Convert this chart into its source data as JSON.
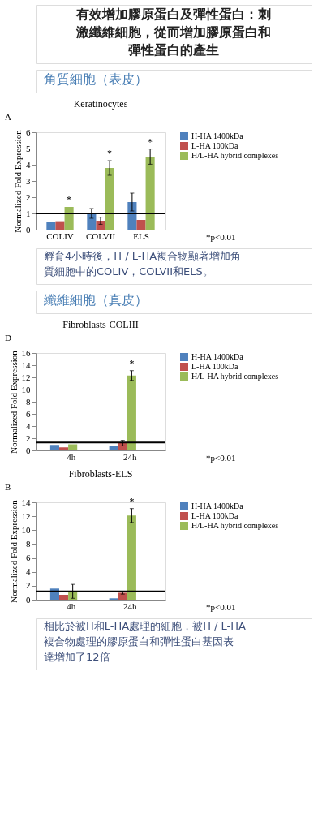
{
  "chart_data": [
    {
      "type": "bar",
      "title": "Keratinocytes",
      "ylabel": "Normalized Fold Expression",
      "categories": [
        "COLIV",
        "COLVII",
        "ELS"
      ],
      "series": [
        {
          "name": "H-HA 1400kDa",
          "color": "#4f81bd",
          "values": [
            0.45,
            1.0,
            1.7
          ],
          "errors": [
            null,
            0.3,
            0.55
          ]
        },
        {
          "name": "L-HA 100kDa",
          "color": "#c0504d",
          "values": [
            0.52,
            0.55,
            0.6
          ],
          "errors": [
            null,
            0.22,
            null
          ]
        },
        {
          "name": "H/L-HA hybrid complexes",
          "color": "#9bbb59",
          "values": [
            1.4,
            3.8,
            4.5
          ],
          "errors": [
            null,
            0.45,
            0.47
          ]
        }
      ],
      "ylim": [
        0,
        6
      ],
      "yticks": [
        0,
        1,
        2,
        3,
        4,
        5,
        6
      ],
      "grid": false,
      "legend": "right",
      "ref_lines": [
        {
          "axis": "y",
          "value": 1,
          "color": "#000000"
        }
      ],
      "annotations": [
        "有效增加膠原蛋白及彈性蛋白：刺激纖維細胞，從而增加膠原蛋白和彈性蛋白的產生",
        "角質細胞（表皮）",
        "A",
        "*p<0.01",
        "孵育4小時後，H / L-HA複合物顯著增加角質細胞中的COLIV，COLVII和ELS。",
        "*",
        "*",
        "*"
      ]
    },
    {
      "type": "bar",
      "title": "Fibroblasts-COLIII",
      "ylabel": "Normalized Fold Expression",
      "categories": [
        "4h",
        "24h"
      ],
      "series": [
        {
          "name": "H-HA 1400kDa",
          "color": "#4f81bd",
          "values": [
            0.9,
            0.7
          ],
          "errors": [
            null,
            null
          ]
        },
        {
          "name": "L-HA 100kDa",
          "color": "#c0504d",
          "values": [
            0.5,
            1.2
          ],
          "errors": [
            null,
            0.45
          ]
        },
        {
          "name": "H/L-HA hybrid complexes",
          "color": "#9bbb59",
          "values": [
            1.0,
            12.3
          ],
          "errors": [
            null,
            0.8
          ]
        }
      ],
      "ylim": [
        0,
        16
      ],
      "yticks": [
        0,
        2,
        4,
        6,
        8,
        10,
        12,
        14,
        16
      ],
      "grid": false,
      "legend": "right",
      "ref_lines": [
        {
          "axis": "y",
          "value": 1.3,
          "color": "#000000"
        }
      ],
      "annotations": [
        "纖維細胞（真皮）",
        "D",
        "*p<0.01",
        "*"
      ]
    },
    {
      "type": "bar",
      "title": "Fibroblasts-ELS",
      "ylabel": "Normalized Fold Expression",
      "categories": [
        "4h",
        "24h"
      ],
      "series": [
        {
          "name": "H-HA 1400kDa",
          "color": "#4f81bd",
          "values": [
            1.6,
            0.2
          ],
          "errors": [
            null,
            null
          ]
        },
        {
          "name": "L-HA 100kDa",
          "color": "#c0504d",
          "values": [
            0.7,
            1.0
          ],
          "errors": [
            null,
            0.2
          ]
        },
        {
          "name": "H/L-HA hybrid complexes",
          "color": "#9bbb59",
          "values": [
            1.2,
            12.1
          ],
          "errors": [
            1.0,
            1.0
          ]
        }
      ],
      "ylim": [
        0,
        14
      ],
      "yticks": [
        0,
        2,
        4,
        6,
        8,
        10,
        12,
        14
      ],
      "grid": false,
      "legend": "right",
      "ref_lines": [
        {
          "axis": "y",
          "value": 1.2,
          "color": "#000000"
        }
      ],
      "annotations": [
        "B",
        "*p<0.01",
        "相比於被H和L-HA處理的細胞，被H / L-HA複合物處理的膠原蛋白和彈性蛋白基因表達增加了12倍",
        "*"
      ]
    }
  ]
}
